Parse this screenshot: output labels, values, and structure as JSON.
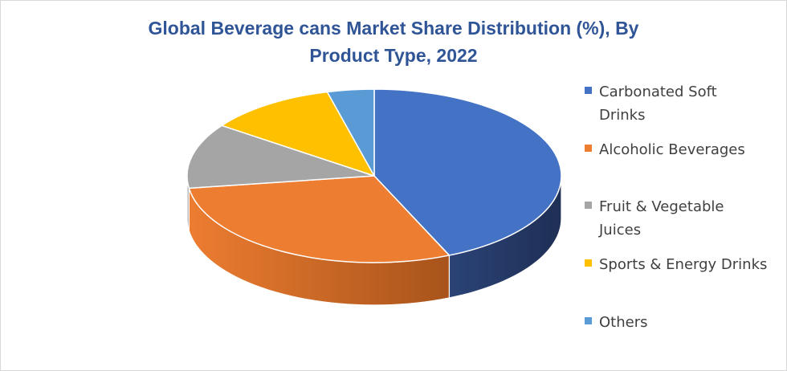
{
  "chart_data": {
    "type": "pie",
    "style": "3d",
    "title_lines": [
      "Global Beverage cans Market Share Distribution (%), By",
      "Product Type, 2022"
    ],
    "categories": [
      "Carbonated Soft Drinks",
      "Alcoholic Beverages",
      "Fruit & Vegetable Juices",
      "Sports & Energy Drinks",
      "Others"
    ],
    "values": [
      43,
      29,
      12,
      11,
      4
    ],
    "unit": "%",
    "colors": [
      "#4472c4",
      "#ed7d31",
      "#a5a5a5",
      "#ffc000",
      "#5b9bd5"
    ],
    "side_colors": [
      "#1f2f55",
      "#8a4212",
      "#6e6e6e",
      "#9a7400",
      "#2e5f8c"
    ],
    "legend": {
      "position": "right",
      "items": [
        {
          "lines": [
            "Carbonated Soft",
            "Drinks"
          ]
        },
        {
          "lines": [
            "Alcoholic Beverages"
          ]
        },
        {
          "lines": [
            "Fruit & Vegetable",
            "Juices"
          ]
        },
        {
          "lines": [
            "Sports & Energy Drinks"
          ]
        },
        {
          "lines": [
            "Others"
          ]
        }
      ]
    }
  }
}
